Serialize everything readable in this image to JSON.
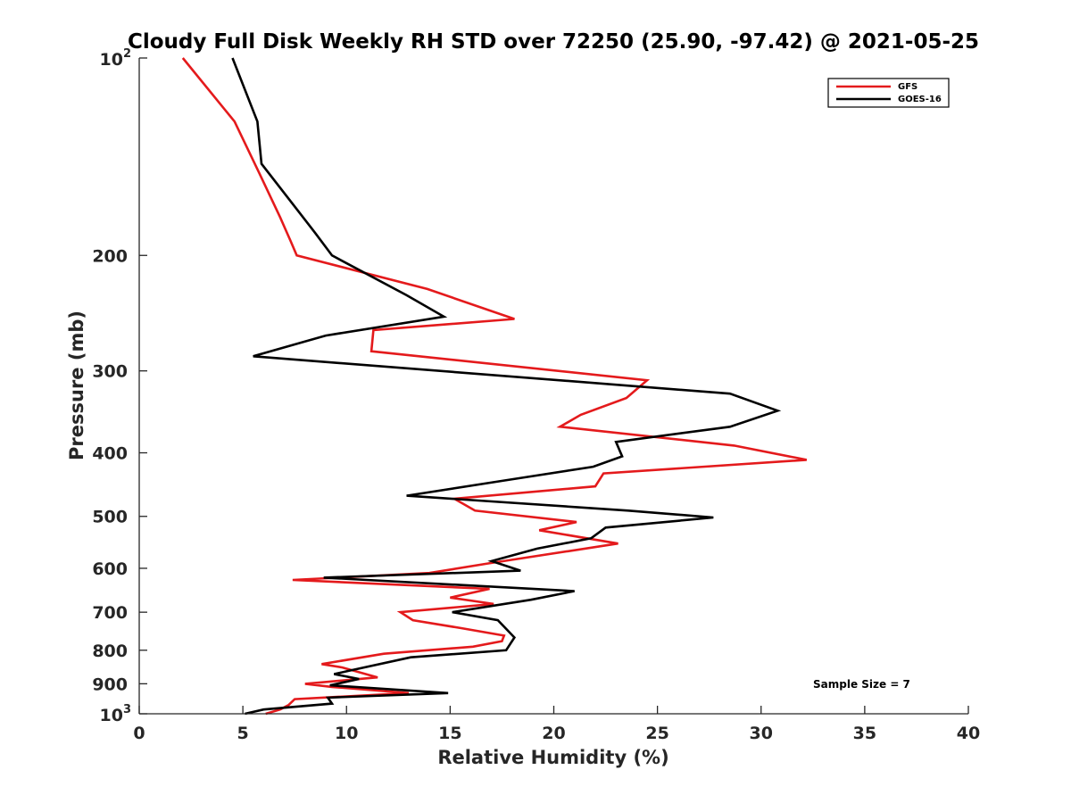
{
  "chart_data": {
    "type": "line",
    "title": "Cloudy Full Disk Weekly RH STD over 72250 (25.90, -97.42) @ 2021-05-25",
    "xlabel": "Relative Humidity (%)",
    "ylabel": "Pressure (mb)",
    "xlim": [
      0,
      40
    ],
    "ylim": [
      100,
      1000
    ],
    "y_scale": "log",
    "y_reversed": true,
    "x_ticks": [
      "0",
      "5",
      "10",
      "15",
      "20",
      "25",
      "30",
      "35",
      "40"
    ],
    "y_ticks": [
      {
        "value": 100,
        "base": "10",
        "exp": "2"
      },
      {
        "value": 200,
        "label": "200"
      },
      {
        "value": 300,
        "label": "300"
      },
      {
        "value": 400,
        "label": "400"
      },
      {
        "value": 500,
        "label": "500"
      },
      {
        "value": 600,
        "label": "600"
      },
      {
        "value": 700,
        "label": "700"
      },
      {
        "value": 800,
        "label": "800"
      },
      {
        "value": 900,
        "label": "900"
      },
      {
        "value": 1000,
        "base": "10",
        "exp": "3"
      }
    ],
    "legend": {
      "location": "top-right"
    },
    "annotation": "Sample Size = 7",
    "series": [
      {
        "name": "GFS",
        "color": "#e41a1c",
        "points": [
          {
            "rh": 2.1,
            "p": 100
          },
          {
            "rh": 4.6,
            "p": 125
          },
          {
            "rh": 5.8,
            "p": 150
          },
          {
            "rh": 6.8,
            "p": 175
          },
          {
            "rh": 7.3,
            "p": 190
          },
          {
            "rh": 7.6,
            "p": 200
          },
          {
            "rh": 13.9,
            "p": 225
          },
          {
            "rh": 18.1,
            "p": 250
          },
          {
            "rh": 11.3,
            "p": 260
          },
          {
            "rh": 11.2,
            "p": 280
          },
          {
            "rh": 24.5,
            "p": 310
          },
          {
            "rh": 23.5,
            "p": 330
          },
          {
            "rh": 21.3,
            "p": 350
          },
          {
            "rh": 20.3,
            "p": 365
          },
          {
            "rh": 28.7,
            "p": 390
          },
          {
            "rh": 32.2,
            "p": 410
          },
          {
            "rh": 22.4,
            "p": 430
          },
          {
            "rh": 22.0,
            "p": 450
          },
          {
            "rh": 15.2,
            "p": 470
          },
          {
            "rh": 16.2,
            "p": 490
          },
          {
            "rh": 21.1,
            "p": 510
          },
          {
            "rh": 19.3,
            "p": 525
          },
          {
            "rh": 23.1,
            "p": 550
          },
          {
            "rh": 16.8,
            "p": 590
          },
          {
            "rh": 14.0,
            "p": 610
          },
          {
            "rh": 7.4,
            "p": 625
          },
          {
            "rh": 16.9,
            "p": 645
          },
          {
            "rh": 15.0,
            "p": 665
          },
          {
            "rh": 17.1,
            "p": 680
          },
          {
            "rh": 12.6,
            "p": 700
          },
          {
            "rh": 13.2,
            "p": 720
          },
          {
            "rh": 15.5,
            "p": 740
          },
          {
            "rh": 17.6,
            "p": 760
          },
          {
            "rh": 17.5,
            "p": 775
          },
          {
            "rh": 16.1,
            "p": 790
          },
          {
            "rh": 11.8,
            "p": 810
          },
          {
            "rh": 8.8,
            "p": 840
          },
          {
            "rh": 9.8,
            "p": 850
          },
          {
            "rh": 11.5,
            "p": 880
          },
          {
            "rh": 8.0,
            "p": 900
          },
          {
            "rh": 9.3,
            "p": 910
          },
          {
            "rh": 13.0,
            "p": 930
          },
          {
            "rh": 7.5,
            "p": 950
          },
          {
            "rh": 7.2,
            "p": 970
          },
          {
            "rh": 6.8,
            "p": 985
          },
          {
            "rh": 6.1,
            "p": 1000
          }
        ]
      },
      {
        "name": "GOES-16",
        "color": "#000000",
        "points": [
          {
            "rh": 4.5,
            "p": 100
          },
          {
            "rh": 5.7,
            "p": 125
          },
          {
            "rh": 5.9,
            "p": 145
          },
          {
            "rh": 7.6,
            "p": 170
          },
          {
            "rh": 8.5,
            "p": 185
          },
          {
            "rh": 9.3,
            "p": 200
          },
          {
            "rh": 12.9,
            "p": 230
          },
          {
            "rh": 14.7,
            "p": 248
          },
          {
            "rh": 9.0,
            "p": 265
          },
          {
            "rh": 5.5,
            "p": 285
          },
          {
            "rh": 28.5,
            "p": 325
          },
          {
            "rh": 30.8,
            "p": 345
          },
          {
            "rh": 28.5,
            "p": 365
          },
          {
            "rh": 23.0,
            "p": 385
          },
          {
            "rh": 23.3,
            "p": 405
          },
          {
            "rh": 21.9,
            "p": 420
          },
          {
            "rh": 17.8,
            "p": 440
          },
          {
            "rh": 12.9,
            "p": 465
          },
          {
            "rh": 23.6,
            "p": 490
          },
          {
            "rh": 27.7,
            "p": 502
          },
          {
            "rh": 22.5,
            "p": 520
          },
          {
            "rh": 21.8,
            "p": 540
          },
          {
            "rh": 19.2,
            "p": 560
          },
          {
            "rh": 17.0,
            "p": 585
          },
          {
            "rh": 18.4,
            "p": 605
          },
          {
            "rh": 8.9,
            "p": 620
          },
          {
            "rh": 21.0,
            "p": 650
          },
          {
            "rh": 18.9,
            "p": 670
          },
          {
            "rh": 15.1,
            "p": 700
          },
          {
            "rh": 17.3,
            "p": 720
          },
          {
            "rh": 18.1,
            "p": 765
          },
          {
            "rh": 17.7,
            "p": 800
          },
          {
            "rh": 13.1,
            "p": 820
          },
          {
            "rh": 10.1,
            "p": 860
          },
          {
            "rh": 9.4,
            "p": 870
          },
          {
            "rh": 10.6,
            "p": 885
          },
          {
            "rh": 9.2,
            "p": 905
          },
          {
            "rh": 14.9,
            "p": 930
          },
          {
            "rh": 9.1,
            "p": 945
          },
          {
            "rh": 9.3,
            "p": 965
          },
          {
            "rh": 6.0,
            "p": 985
          },
          {
            "rh": 5.1,
            "p": 1000
          }
        ]
      }
    ]
  }
}
